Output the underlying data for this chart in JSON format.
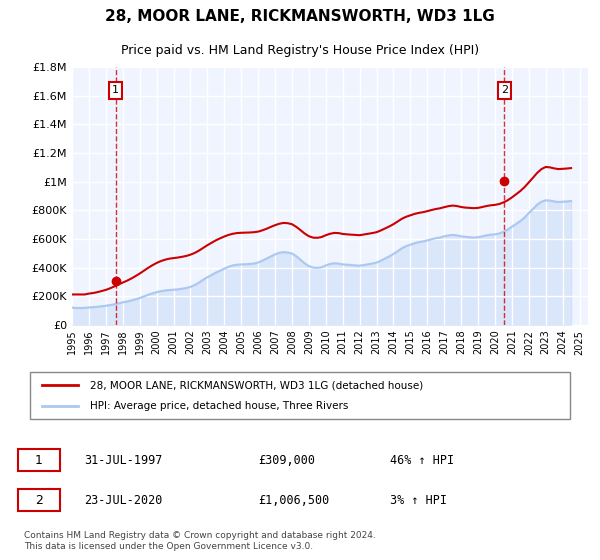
{
  "title": "28, MOOR LANE, RICKMANSWORTH, WD3 1LG",
  "subtitle": "Price paid vs. HM Land Registry's House Price Index (HPI)",
  "title_fontsize": 11,
  "subtitle_fontsize": 9,
  "ylabel": "",
  "xlabel": "",
  "ylim": [
    0,
    1800000
  ],
  "xlim_start": 1995.0,
  "xlim_end": 2025.5,
  "yticks": [
    0,
    200000,
    400000,
    600000,
    800000,
    1000000,
    1200000,
    1400000,
    1600000,
    1800000
  ],
  "ytick_labels": [
    "£0",
    "£200K",
    "£400K",
    "£600K",
    "£800K",
    "£1M",
    "£1.2M",
    "£1.4M",
    "£1.6M",
    "£1.8M"
  ],
  "xticks": [
    1995,
    1996,
    1997,
    1998,
    1999,
    2000,
    2001,
    2002,
    2003,
    2004,
    2005,
    2006,
    2007,
    2008,
    2009,
    2010,
    2011,
    2012,
    2013,
    2014,
    2015,
    2016,
    2017,
    2018,
    2019,
    2020,
    2021,
    2022,
    2023,
    2024,
    2025
  ],
  "bg_color": "#f0f4ff",
  "plot_bg_color": "#f0f4ff",
  "grid_color": "#ffffff",
  "red_line_color": "#cc0000",
  "blue_line_color": "#aac8f0",
  "dashed_line_color": "#cc0000",
  "marker_color": "#cc0000",
  "annotation_box_color": "#cc0000",
  "legend_line1": "28, MOOR LANE, RICKMANSWORTH, WD3 1LG (detached house)",
  "legend_line2": "HPI: Average price, detached house, Three Rivers",
  "transaction1_label": "1",
  "transaction1_date": "31-JUL-1997",
  "transaction1_price": "£309,000",
  "transaction1_hpi": "46% ↑ HPI",
  "transaction1_x": 1997.58,
  "transaction1_y": 309000,
  "transaction2_label": "2",
  "transaction2_date": "23-JUL-2020",
  "transaction2_price": "£1,006,500",
  "transaction2_hpi": "3% ↑ HPI",
  "transaction2_x": 2020.56,
  "transaction2_y": 1006500,
  "footer": "Contains HM Land Registry data © Crown copyright and database right 2024.\nThis data is licensed under the Open Government Licence v3.0.",
  "hpi_data_x": [
    1995.0,
    1995.25,
    1995.5,
    1995.75,
    1996.0,
    1996.25,
    1996.5,
    1996.75,
    1997.0,
    1997.25,
    1997.5,
    1997.75,
    1998.0,
    1998.25,
    1998.5,
    1998.75,
    1999.0,
    1999.25,
    1999.5,
    1999.75,
    2000.0,
    2000.25,
    2000.5,
    2000.75,
    2001.0,
    2001.25,
    2001.5,
    2001.75,
    2002.0,
    2002.25,
    2002.5,
    2002.75,
    2003.0,
    2003.25,
    2003.5,
    2003.75,
    2004.0,
    2004.25,
    2004.5,
    2004.75,
    2005.0,
    2005.25,
    2005.5,
    2005.75,
    2006.0,
    2006.25,
    2006.5,
    2006.75,
    2007.0,
    2007.25,
    2007.5,
    2007.75,
    2008.0,
    2008.25,
    2008.5,
    2008.75,
    2009.0,
    2009.25,
    2009.5,
    2009.75,
    2010.0,
    2010.25,
    2010.5,
    2010.75,
    2011.0,
    2011.25,
    2011.5,
    2011.75,
    2012.0,
    2012.25,
    2012.5,
    2012.75,
    2013.0,
    2013.25,
    2013.5,
    2013.75,
    2014.0,
    2014.25,
    2014.5,
    2014.75,
    2015.0,
    2015.25,
    2015.5,
    2015.75,
    2016.0,
    2016.25,
    2016.5,
    2016.75,
    2017.0,
    2017.25,
    2017.5,
    2017.75,
    2018.0,
    2018.25,
    2018.5,
    2018.75,
    2019.0,
    2019.25,
    2019.5,
    2019.75,
    2020.0,
    2020.25,
    2020.5,
    2020.75,
    2021.0,
    2021.25,
    2021.5,
    2021.75,
    2022.0,
    2022.25,
    2022.5,
    2022.75,
    2023.0,
    2023.25,
    2023.5,
    2023.75,
    2024.0,
    2024.25,
    2024.5
  ],
  "hpi_data_y": [
    120000,
    118000,
    117000,
    119000,
    121000,
    123000,
    126000,
    130000,
    133000,
    138000,
    143000,
    150000,
    157000,
    163000,
    170000,
    178000,
    187000,
    198000,
    210000,
    220000,
    228000,
    235000,
    240000,
    243000,
    245000,
    248000,
    252000,
    257000,
    265000,
    278000,
    295000,
    315000,
    332000,
    348000,
    365000,
    378000,
    392000,
    405000,
    415000,
    420000,
    422000,
    423000,
    425000,
    428000,
    435000,
    448000,
    463000,
    478000,
    492000,
    503000,
    508000,
    505000,
    498000,
    480000,
    455000,
    430000,
    410000,
    400000,
    398000,
    402000,
    415000,
    425000,
    430000,
    428000,
    422000,
    420000,
    418000,
    415000,
    413000,
    418000,
    423000,
    428000,
    435000,
    448000,
    463000,
    478000,
    495000,
    515000,
    535000,
    550000,
    560000,
    570000,
    578000,
    583000,
    590000,
    598000,
    605000,
    610000,
    618000,
    625000,
    628000,
    625000,
    618000,
    615000,
    612000,
    610000,
    612000,
    618000,
    625000,
    630000,
    632000,
    638000,
    650000,
    665000,
    685000,
    705000,
    725000,
    750000,
    780000,
    810000,
    840000,
    860000,
    870000,
    868000,
    862000,
    858000,
    860000,
    862000,
    865000
  ],
  "red_data_x": [
    1995.0,
    1995.25,
    1995.5,
    1995.75,
    1996.0,
    1996.25,
    1996.5,
    1996.75,
    1997.0,
    1997.25,
    1997.5,
    1997.75,
    1998.0,
    1998.25,
    1998.5,
    1998.75,
    1999.0,
    1999.25,
    1999.5,
    1999.75,
    2000.0,
    2000.25,
    2000.5,
    2000.75,
    2001.0,
    2001.25,
    2001.5,
    2001.75,
    2002.0,
    2002.25,
    2002.5,
    2002.75,
    2003.0,
    2003.25,
    2003.5,
    2003.75,
    2004.0,
    2004.25,
    2004.5,
    2004.75,
    2005.0,
    2005.25,
    2005.5,
    2005.75,
    2006.0,
    2006.25,
    2006.5,
    2006.75,
    2007.0,
    2007.25,
    2007.5,
    2007.75,
    2008.0,
    2008.25,
    2008.5,
    2008.75,
    2009.0,
    2009.25,
    2009.5,
    2009.75,
    2010.0,
    2010.25,
    2010.5,
    2010.75,
    2011.0,
    2011.25,
    2011.5,
    2011.75,
    2012.0,
    2012.25,
    2012.5,
    2012.75,
    2013.0,
    2013.25,
    2013.5,
    2013.75,
    2014.0,
    2014.25,
    2014.5,
    2014.75,
    2015.0,
    2015.25,
    2015.5,
    2015.75,
    2016.0,
    2016.25,
    2016.5,
    2016.75,
    2017.0,
    2017.25,
    2017.5,
    2017.75,
    2018.0,
    2018.25,
    2018.5,
    2018.75,
    2019.0,
    2019.25,
    2019.5,
    2019.75,
    2020.0,
    2020.25,
    2020.5,
    2020.75,
    2021.0,
    2021.25,
    2021.5,
    2021.75,
    2022.0,
    2022.25,
    2022.5,
    2022.75,
    2023.0,
    2023.25,
    2023.5,
    2023.75,
    2024.0,
    2024.25,
    2024.5
  ],
  "red_data_y": [
    212000,
    212000,
    212000,
    212000,
    218000,
    222000,
    228000,
    236000,
    244000,
    255000,
    268000,
    282000,
    295000,
    308000,
    323000,
    340000,
    358000,
    378000,
    398000,
    416000,
    432000,
    445000,
    455000,
    462000,
    466000,
    470000,
    475000,
    481000,
    490000,
    502000,
    518000,
    537000,
    556000,
    573000,
    590000,
    604000,
    617000,
    628000,
    636000,
    641000,
    643000,
    644000,
    645000,
    647000,
    651000,
    660000,
    671000,
    684000,
    696000,
    706000,
    712000,
    710000,
    703000,
    685000,
    662000,
    638000,
    619000,
    609000,
    608000,
    613000,
    626000,
    636000,
    642000,
    641000,
    635000,
    632000,
    630000,
    628000,
    626000,
    631000,
    636000,
    641000,
    647000,
    659000,
    673000,
    687000,
    703000,
    722000,
    741000,
    755000,
    765000,
    775000,
    782000,
    787000,
    794000,
    802000,
    809000,
    814000,
    822000,
    829000,
    833000,
    830000,
    823000,
    819000,
    817000,
    815000,
    817000,
    823000,
    830000,
    835000,
    838000,
    844000,
    855000,
    870000,
    890000,
    912000,
    935000,
    962000,
    995000,
    1028000,
    1062000,
    1088000,
    1103000,
    1100000,
    1093000,
    1088000,
    1090000,
    1092000,
    1095000
  ]
}
